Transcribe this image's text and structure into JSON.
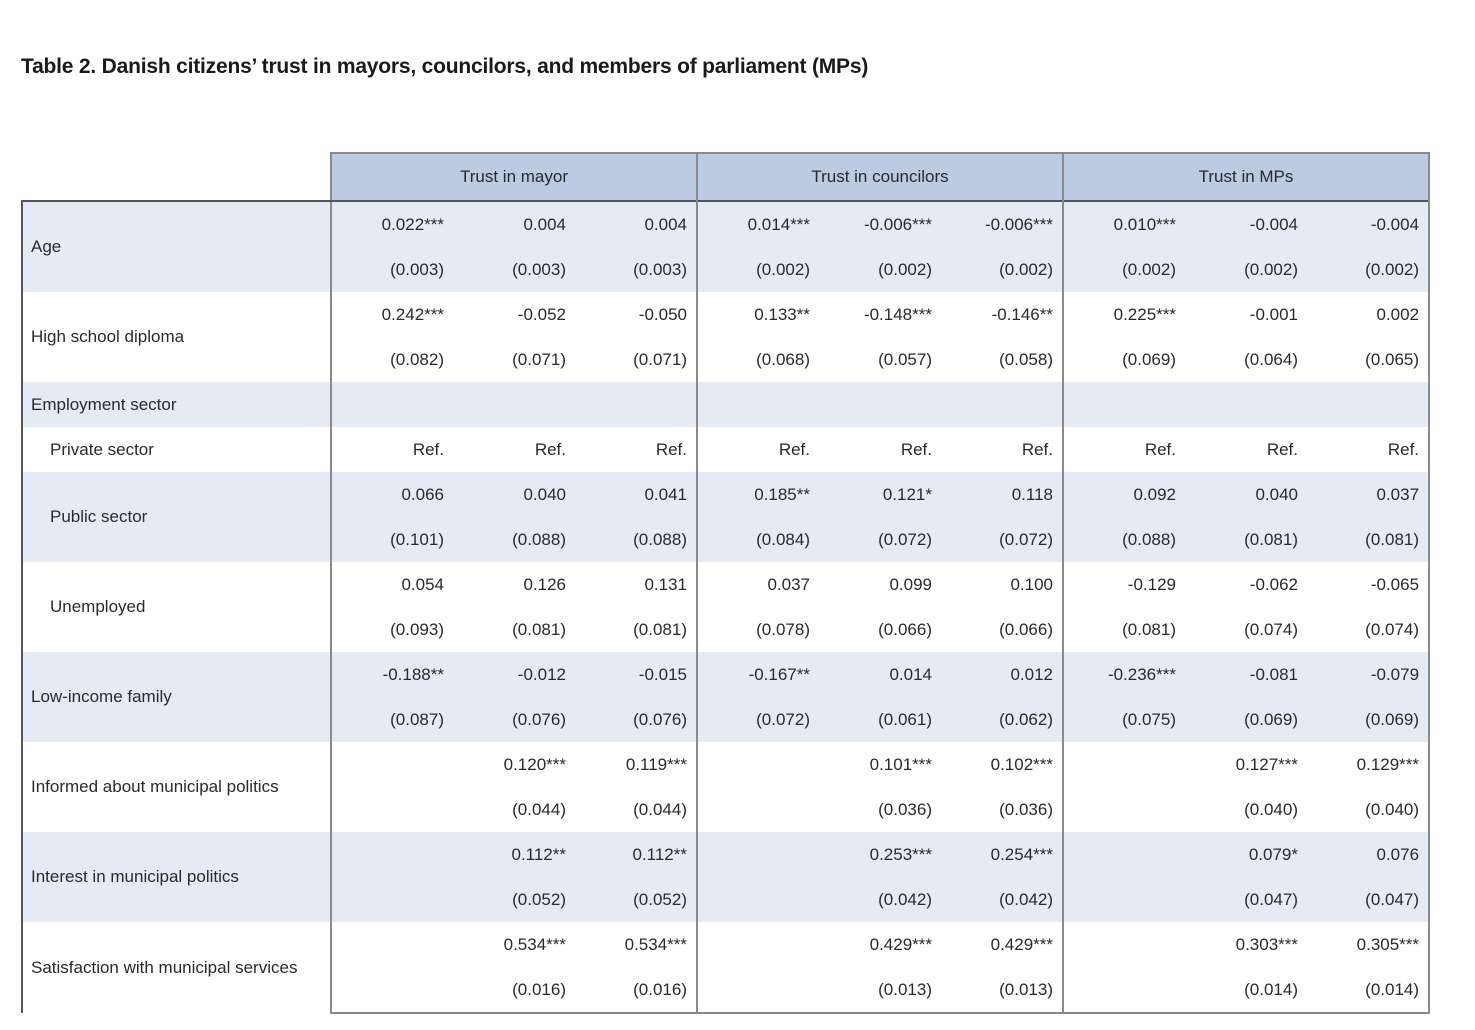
{
  "caption": "Table 2. Danish citizens’ trust in mayors, councilors, and members of parliament (MPs)",
  "column_groups": [
    "Trust in mayor",
    "Trust in councilors",
    "Trust in MPs"
  ],
  "rows": [
    {
      "label": "Age",
      "indent": false,
      "shade": true,
      "coef": [
        "0.022***",
        "0.004",
        "0.004",
        "0.014***",
        "-0.006***",
        "-0.006***",
        "0.010***",
        "-0.004",
        "-0.004"
      ],
      "se": [
        "(0.003)",
        "(0.003)",
        "(0.003)",
        "(0.002)",
        "(0.002)",
        "(0.002)",
        "(0.002)",
        "(0.002)",
        "(0.002)"
      ]
    },
    {
      "label": "High school diploma",
      "indent": false,
      "shade": false,
      "coef": [
        "0.242***",
        "-0.052",
        "-0.050",
        "0.133**",
        "-0.148***",
        "-0.146**",
        "0.225***",
        "-0.001",
        "0.002"
      ],
      "se": [
        "(0.082)",
        "(0.071)",
        "(0.071)",
        "(0.068)",
        "(0.057)",
        "(0.058)",
        "(0.069)",
        "(0.064)",
        "(0.065)"
      ]
    },
    {
      "label": "Employment sector",
      "indent": false,
      "shade": true,
      "coef": [
        "",
        "",
        "",
        "",
        "",
        "",
        "",
        "",
        ""
      ]
    },
    {
      "label": "Private sector",
      "indent": true,
      "shade": false,
      "coef": [
        "Ref.",
        "Ref.",
        "Ref.",
        "Ref.",
        "Ref.",
        "Ref.",
        "Ref.",
        "Ref.",
        "Ref."
      ]
    },
    {
      "label": "Public sector",
      "indent": true,
      "shade": true,
      "coef": [
        "0.066",
        "0.040",
        "0.041",
        "0.185**",
        "0.121*",
        "0.118",
        "0.092",
        "0.040",
        "0.037"
      ],
      "se": [
        "(0.101)",
        "(0.088)",
        "(0.088)",
        "(0.084)",
        "(0.072)",
        "(0.072)",
        "(0.088)",
        "(0.081)",
        "(0.081)"
      ]
    },
    {
      "label": "Unemployed",
      "indent": true,
      "shade": false,
      "coef": [
        "0.054",
        "0.126",
        "0.131",
        "0.037",
        "0.099",
        "0.100",
        "-0.129",
        "-0.062",
        "-0.065"
      ],
      "se": [
        "(0.093)",
        "(0.081)",
        "(0.081)",
        "(0.078)",
        "(0.066)",
        "(0.066)",
        "(0.081)",
        "(0.074)",
        "(0.074)"
      ]
    },
    {
      "label": "Low-income family",
      "indent": false,
      "shade": true,
      "coef": [
        "-0.188**",
        "-0.012",
        "-0.015",
        "-0.167**",
        "0.014",
        "0.012",
        "-0.236***",
        "-0.081",
        "-0.079"
      ],
      "se": [
        "(0.087)",
        "(0.076)",
        "(0.076)",
        "(0.072)",
        "(0.061)",
        "(0.062)",
        "(0.075)",
        "(0.069)",
        "(0.069)"
      ]
    },
    {
      "label": "Informed about municipal politics",
      "indent": false,
      "shade": false,
      "coef": [
        "",
        "0.120***",
        "0.119***",
        "",
        "0.101***",
        "0.102***",
        "",
        "0.127***",
        "0.129***"
      ],
      "se": [
        "",
        "(0.044)",
        "(0.044)",
        "",
        "(0.036)",
        "(0.036)",
        "",
        "(0.040)",
        "(0.040)"
      ]
    },
    {
      "label": "Interest in municipal politics",
      "indent": false,
      "shade": true,
      "coef": [
        "",
        "0.112**",
        "0.112**",
        "",
        "0.253***",
        "0.254***",
        "",
        "0.079*",
        "0.076"
      ],
      "se": [
        "",
        "(0.052)",
        "(0.052)",
        "",
        "(0.042)",
        "(0.042)",
        "",
        "(0.047)",
        "(0.047)"
      ]
    },
    {
      "label": "Satisfaction with municipal services",
      "indent": false,
      "shade": false,
      "coef": [
        "",
        "0.534***",
        "0.534***",
        "",
        "0.429***",
        "0.429***",
        "",
        "0.303***",
        "0.305***"
      ],
      "se": [
        "",
        "(0.016)",
        "(0.016)",
        "",
        "(0.013)",
        "(0.013)",
        "",
        "(0.014)",
        "(0.014)"
      ]
    }
  ]
}
